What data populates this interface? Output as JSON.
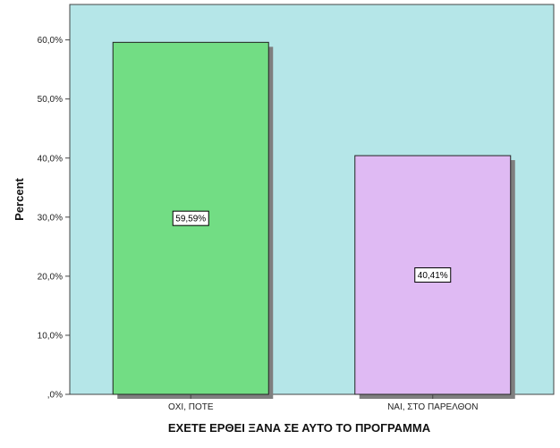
{
  "chart_data": {
    "type": "bar",
    "categories": [
      "ΟΧΙ, ΠΟΤΕ",
      "ΝΑΙ, ΣΤΟ ΠΑΡΕΛΘΟΝ"
    ],
    "values": [
      59.59,
      40.41
    ],
    "data_labels": [
      "59,59%",
      "40,41%"
    ],
    "bar_colors": [
      "#72dd84",
      "#dfbaf3"
    ],
    "xlabel": "ΕΧΕΤΕ ΕΡΘΕΙ ΞΑΝΑ ΣΕ ΑΥΤΟ ΤΟ ΠΡΟΓΡΑΜΜΑ",
    "ylabel": "Percent",
    "ylim": [
      0,
      66
    ],
    "y_ticks": [
      0,
      10,
      20,
      30,
      40,
      50,
      60
    ],
    "y_tick_labels": [
      ",0%",
      "10,0%",
      "20,0%",
      "30,0%",
      "40,0%",
      "50,0%",
      "60,0%"
    ],
    "plot_background": "#b5e6e8",
    "shadow_color": "#7f7f7f",
    "grid": false,
    "legend": "none"
  }
}
